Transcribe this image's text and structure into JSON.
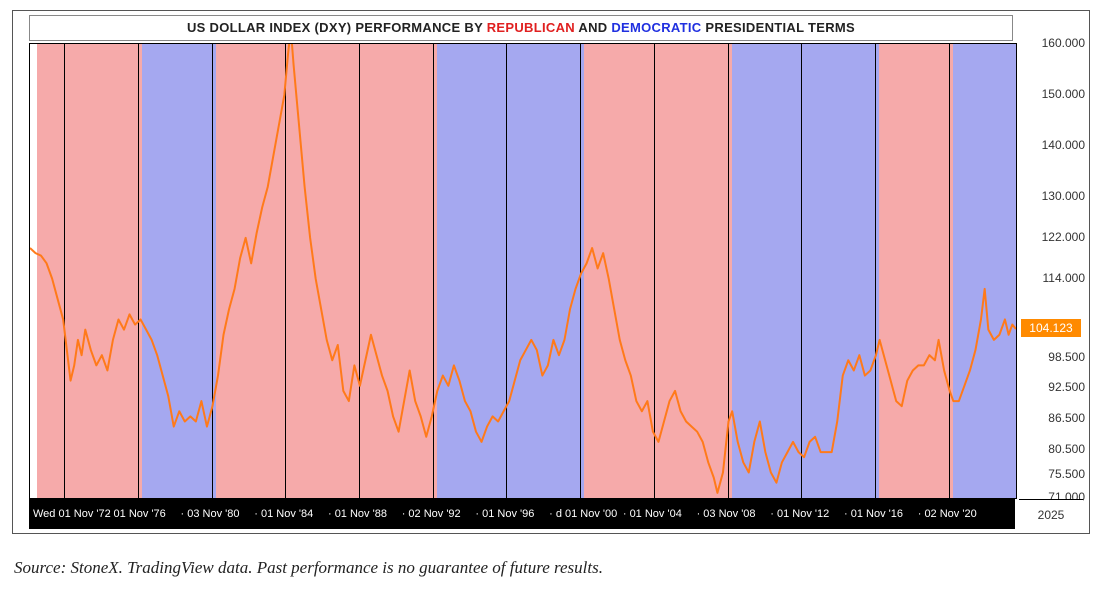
{
  "title": {
    "prefix": "US DOLLAR INDEX (DXY) PERFORMANCE BY ",
    "rep": "REPUBLICAN",
    "mid": " AND ",
    "dem": "DEMOCRATIC",
    "suffix": " PRESIDENTIAL TERMS",
    "fontsize": 13,
    "fontweight": "bold"
  },
  "source_line": "Source: StoneX. TradingView data. Past performance is no guarantee of future results.",
  "future_label": "2025",
  "colors": {
    "rep_band": "#f6aaaa",
    "dem_band": "#a5a8f0",
    "line": "#ff7a1a",
    "price_tag_bg": "#ff8a00",
    "price_tag_fg": "#ffffff",
    "x_axis_bg": "#000000",
    "x_axis_fg": "#ffffff",
    "y_tick_fg": "#333333",
    "frame": "#000000"
  },
  "chart": {
    "type": "line",
    "y": {
      "min": 71.0,
      "max": 160.0,
      "ticks": [
        160.0,
        150.0,
        140.0,
        130.0,
        122.0,
        114.0,
        104.123,
        98.5,
        92.5,
        86.5,
        80.5,
        75.5,
        71.0
      ],
      "price_tick": 104.123,
      "tick_fontsize": 12
    },
    "x": {
      "year_min": 1971.0,
      "year_max": 2024.5,
      "labels": [
        {
          "year": 1972.85,
          "text": "Wed 01 Nov '72"
        },
        {
          "year": 1976.85,
          "text": "01 Nov '76"
        },
        {
          "year": 1980.85,
          "text": "03 Nov '80"
        },
        {
          "year": 1984.85,
          "text": "01 Nov '84"
        },
        {
          "year": 1988.85,
          "text": "01 Nov '88"
        },
        {
          "year": 1992.85,
          "text": "02 Nov '92"
        },
        {
          "year": 1996.85,
          "text": "01 Nov '96"
        },
        {
          "year": 2000.85,
          "text": "d 01 Nov '00"
        },
        {
          "year": 2004.85,
          "text": "01 Nov '04"
        },
        {
          "year": 2008.85,
          "text": "03 Nov '08"
        },
        {
          "year": 2012.85,
          "text": "01 Nov '12"
        },
        {
          "year": 2016.85,
          "text": "01 Nov '16"
        },
        {
          "year": 2020.85,
          "text": "02 Nov '20"
        }
      ],
      "label_fontsize": 11
    },
    "bands": [
      {
        "from": 1971.0,
        "to": 1971.4,
        "party": "none"
      },
      {
        "from": 1971.4,
        "to": 1977.08,
        "party": "rep"
      },
      {
        "from": 1977.08,
        "to": 1981.08,
        "party": "dem"
      },
      {
        "from": 1981.08,
        "to": 1989.08,
        "party": "rep"
      },
      {
        "from": 1989.08,
        "to": 1993.08,
        "party": "rep"
      },
      {
        "from": 1993.08,
        "to": 2001.08,
        "party": "dem"
      },
      {
        "from": 2001.08,
        "to": 2009.08,
        "party": "rep"
      },
      {
        "from": 2009.08,
        "to": 2017.08,
        "party": "dem"
      },
      {
        "from": 2017.08,
        "to": 2021.08,
        "party": "rep"
      },
      {
        "from": 2021.08,
        "to": 2024.5,
        "party": "dem"
      }
    ],
    "vlines_at": [
      1972.85,
      1976.85,
      1980.85,
      1984.85,
      1988.85,
      1992.85,
      1996.85,
      2000.85,
      2004.85,
      2008.85,
      2012.85,
      2016.85,
      2020.85
    ],
    "line_width": 2,
    "series": [
      {
        "x": 1971.0,
        "y": 120.0
      },
      {
        "x": 1971.3,
        "y": 119.0
      },
      {
        "x": 1971.6,
        "y": 118.5
      },
      {
        "x": 1971.9,
        "y": 117.0
      },
      {
        "x": 1972.2,
        "y": 114.0
      },
      {
        "x": 1972.5,
        "y": 110.0
      },
      {
        "x": 1972.8,
        "y": 106.0
      },
      {
        "x": 1973.0,
        "y": 100.0
      },
      {
        "x": 1973.2,
        "y": 94.0
      },
      {
        "x": 1973.4,
        "y": 97.0
      },
      {
        "x": 1973.6,
        "y": 102.0
      },
      {
        "x": 1973.8,
        "y": 99.0
      },
      {
        "x": 1974.0,
        "y": 104.0
      },
      {
        "x": 1974.3,
        "y": 100.0
      },
      {
        "x": 1974.6,
        "y": 97.0
      },
      {
        "x": 1974.9,
        "y": 99.0
      },
      {
        "x": 1975.2,
        "y": 96.0
      },
      {
        "x": 1975.5,
        "y": 102.0
      },
      {
        "x": 1975.8,
        "y": 106.0
      },
      {
        "x": 1976.1,
        "y": 104.0
      },
      {
        "x": 1976.4,
        "y": 107.0
      },
      {
        "x": 1976.7,
        "y": 105.0
      },
      {
        "x": 1977.0,
        "y": 106.0
      },
      {
        "x": 1977.3,
        "y": 104.0
      },
      {
        "x": 1977.6,
        "y": 102.0
      },
      {
        "x": 1977.9,
        "y": 99.0
      },
      {
        "x": 1978.2,
        "y": 95.0
      },
      {
        "x": 1978.5,
        "y": 91.0
      },
      {
        "x": 1978.8,
        "y": 85.0
      },
      {
        "x": 1979.1,
        "y": 88.0
      },
      {
        "x": 1979.4,
        "y": 86.0
      },
      {
        "x": 1979.7,
        "y": 87.0
      },
      {
        "x": 1980.0,
        "y": 86.0
      },
      {
        "x": 1980.3,
        "y": 90.0
      },
      {
        "x": 1980.6,
        "y": 85.0
      },
      {
        "x": 1980.9,
        "y": 89.0
      },
      {
        "x": 1981.2,
        "y": 95.0
      },
      {
        "x": 1981.5,
        "y": 103.0
      },
      {
        "x": 1981.8,
        "y": 108.0
      },
      {
        "x": 1982.1,
        "y": 112.0
      },
      {
        "x": 1982.4,
        "y": 118.0
      },
      {
        "x": 1982.7,
        "y": 122.0
      },
      {
        "x": 1983.0,
        "y": 117.0
      },
      {
        "x": 1983.3,
        "y": 123.0
      },
      {
        "x": 1983.6,
        "y": 128.0
      },
      {
        "x": 1983.9,
        "y": 132.0
      },
      {
        "x": 1984.2,
        "y": 138.0
      },
      {
        "x": 1984.5,
        "y": 144.0
      },
      {
        "x": 1984.8,
        "y": 150.0
      },
      {
        "x": 1985.0,
        "y": 158.0
      },
      {
        "x": 1985.15,
        "y": 163.0
      },
      {
        "x": 1985.3,
        "y": 156.0
      },
      {
        "x": 1985.6,
        "y": 144.0
      },
      {
        "x": 1985.9,
        "y": 132.0
      },
      {
        "x": 1986.2,
        "y": 122.0
      },
      {
        "x": 1986.5,
        "y": 114.0
      },
      {
        "x": 1986.8,
        "y": 108.0
      },
      {
        "x": 1987.1,
        "y": 102.0
      },
      {
        "x": 1987.4,
        "y": 98.0
      },
      {
        "x": 1987.7,
        "y": 101.0
      },
      {
        "x": 1988.0,
        "y": 92.0
      },
      {
        "x": 1988.3,
        "y": 90.0
      },
      {
        "x": 1988.6,
        "y": 97.0
      },
      {
        "x": 1988.9,
        "y": 93.0
      },
      {
        "x": 1989.2,
        "y": 98.0
      },
      {
        "x": 1989.5,
        "y": 103.0
      },
      {
        "x": 1989.8,
        "y": 99.0
      },
      {
        "x": 1990.1,
        "y": 95.0
      },
      {
        "x": 1990.4,
        "y": 92.0
      },
      {
        "x": 1990.7,
        "y": 87.0
      },
      {
        "x": 1991.0,
        "y": 84.0
      },
      {
        "x": 1991.3,
        "y": 90.0
      },
      {
        "x": 1991.6,
        "y": 96.0
      },
      {
        "x": 1991.9,
        "y": 90.0
      },
      {
        "x": 1992.2,
        "y": 87.0
      },
      {
        "x": 1992.5,
        "y": 83.0
      },
      {
        "x": 1992.8,
        "y": 87.0
      },
      {
        "x": 1993.1,
        "y": 92.0
      },
      {
        "x": 1993.4,
        "y": 95.0
      },
      {
        "x": 1993.7,
        "y": 93.0
      },
      {
        "x": 1994.0,
        "y": 97.0
      },
      {
        "x": 1994.3,
        "y": 94.0
      },
      {
        "x": 1994.6,
        "y": 90.0
      },
      {
        "x": 1994.9,
        "y": 88.0
      },
      {
        "x": 1995.2,
        "y": 84.0
      },
      {
        "x": 1995.5,
        "y": 82.0
      },
      {
        "x": 1995.8,
        "y": 85.0
      },
      {
        "x": 1996.1,
        "y": 87.0
      },
      {
        "x": 1996.4,
        "y": 86.0
      },
      {
        "x": 1996.7,
        "y": 88.0
      },
      {
        "x": 1997.0,
        "y": 90.0
      },
      {
        "x": 1997.3,
        "y": 94.0
      },
      {
        "x": 1997.6,
        "y": 98.0
      },
      {
        "x": 1997.9,
        "y": 100.0
      },
      {
        "x": 1998.2,
        "y": 102.0
      },
      {
        "x": 1998.5,
        "y": 100.0
      },
      {
        "x": 1998.8,
        "y": 95.0
      },
      {
        "x": 1999.1,
        "y": 97.0
      },
      {
        "x": 1999.4,
        "y": 102.0
      },
      {
        "x": 1999.7,
        "y": 99.0
      },
      {
        "x": 2000.0,
        "y": 102.0
      },
      {
        "x": 2000.3,
        "y": 108.0
      },
      {
        "x": 2000.6,
        "y": 112.0
      },
      {
        "x": 2000.9,
        "y": 115.0
      },
      {
        "x": 2001.2,
        "y": 117.0
      },
      {
        "x": 2001.5,
        "y": 120.0
      },
      {
        "x": 2001.8,
        "y": 116.0
      },
      {
        "x": 2002.1,
        "y": 119.0
      },
      {
        "x": 2002.4,
        "y": 114.0
      },
      {
        "x": 2002.7,
        "y": 108.0
      },
      {
        "x": 2003.0,
        "y": 102.0
      },
      {
        "x": 2003.3,
        "y": 98.0
      },
      {
        "x": 2003.6,
        "y": 95.0
      },
      {
        "x": 2003.9,
        "y": 90.0
      },
      {
        "x": 2004.2,
        "y": 88.0
      },
      {
        "x": 2004.5,
        "y": 90.0
      },
      {
        "x": 2004.8,
        "y": 84.0
      },
      {
        "x": 2005.1,
        "y": 82.0
      },
      {
        "x": 2005.4,
        "y": 86.0
      },
      {
        "x": 2005.7,
        "y": 90.0
      },
      {
        "x": 2006.0,
        "y": 92.0
      },
      {
        "x": 2006.3,
        "y": 88.0
      },
      {
        "x": 2006.6,
        "y": 86.0
      },
      {
        "x": 2006.9,
        "y": 85.0
      },
      {
        "x": 2007.2,
        "y": 84.0
      },
      {
        "x": 2007.5,
        "y": 82.0
      },
      {
        "x": 2007.8,
        "y": 78.0
      },
      {
        "x": 2008.1,
        "y": 75.0
      },
      {
        "x": 2008.3,
        "y": 72.0
      },
      {
        "x": 2008.6,
        "y": 76.0
      },
      {
        "x": 2008.9,
        "y": 86.0
      },
      {
        "x": 2009.1,
        "y": 88.0
      },
      {
        "x": 2009.4,
        "y": 82.0
      },
      {
        "x": 2009.7,
        "y": 78.0
      },
      {
        "x": 2010.0,
        "y": 76.0
      },
      {
        "x": 2010.3,
        "y": 82.0
      },
      {
        "x": 2010.6,
        "y": 86.0
      },
      {
        "x": 2010.9,
        "y": 80.0
      },
      {
        "x": 2011.2,
        "y": 76.0
      },
      {
        "x": 2011.5,
        "y": 74.0
      },
      {
        "x": 2011.8,
        "y": 78.0
      },
      {
        "x": 2012.1,
        "y": 80.0
      },
      {
        "x": 2012.4,
        "y": 82.0
      },
      {
        "x": 2012.7,
        "y": 80.0
      },
      {
        "x": 2013.0,
        "y": 79.0
      },
      {
        "x": 2013.3,
        "y": 82.0
      },
      {
        "x": 2013.6,
        "y": 83.0
      },
      {
        "x": 2013.9,
        "y": 80.0
      },
      {
        "x": 2014.2,
        "y": 80.0
      },
      {
        "x": 2014.5,
        "y": 80.0
      },
      {
        "x": 2014.8,
        "y": 86.0
      },
      {
        "x": 2015.1,
        "y": 95.0
      },
      {
        "x": 2015.4,
        "y": 98.0
      },
      {
        "x": 2015.7,
        "y": 96.0
      },
      {
        "x": 2016.0,
        "y": 99.0
      },
      {
        "x": 2016.3,
        "y": 95.0
      },
      {
        "x": 2016.6,
        "y": 96.0
      },
      {
        "x": 2016.9,
        "y": 99.0
      },
      {
        "x": 2017.1,
        "y": 102.0
      },
      {
        "x": 2017.4,
        "y": 98.0
      },
      {
        "x": 2017.7,
        "y": 94.0
      },
      {
        "x": 2018.0,
        "y": 90.0
      },
      {
        "x": 2018.3,
        "y": 89.0
      },
      {
        "x": 2018.6,
        "y": 94.0
      },
      {
        "x": 2018.9,
        "y": 96.0
      },
      {
        "x": 2019.2,
        "y": 97.0
      },
      {
        "x": 2019.5,
        "y": 97.0
      },
      {
        "x": 2019.8,
        "y": 99.0
      },
      {
        "x": 2020.1,
        "y": 98.0
      },
      {
        "x": 2020.3,
        "y": 102.0
      },
      {
        "x": 2020.6,
        "y": 96.0
      },
      {
        "x": 2020.9,
        "y": 92.0
      },
      {
        "x": 2021.1,
        "y": 90.0
      },
      {
        "x": 2021.4,
        "y": 90.0
      },
      {
        "x": 2021.7,
        "y": 93.0
      },
      {
        "x": 2022.0,
        "y": 96.0
      },
      {
        "x": 2022.3,
        "y": 100.0
      },
      {
        "x": 2022.6,
        "y": 106.0
      },
      {
        "x": 2022.8,
        "y": 112.0
      },
      {
        "x": 2023.0,
        "y": 104.0
      },
      {
        "x": 2023.3,
        "y": 102.0
      },
      {
        "x": 2023.6,
        "y": 103.0
      },
      {
        "x": 2023.9,
        "y": 106.0
      },
      {
        "x": 2024.1,
        "y": 103.0
      },
      {
        "x": 2024.3,
        "y": 105.0
      },
      {
        "x": 2024.5,
        "y": 104.123
      }
    ]
  }
}
